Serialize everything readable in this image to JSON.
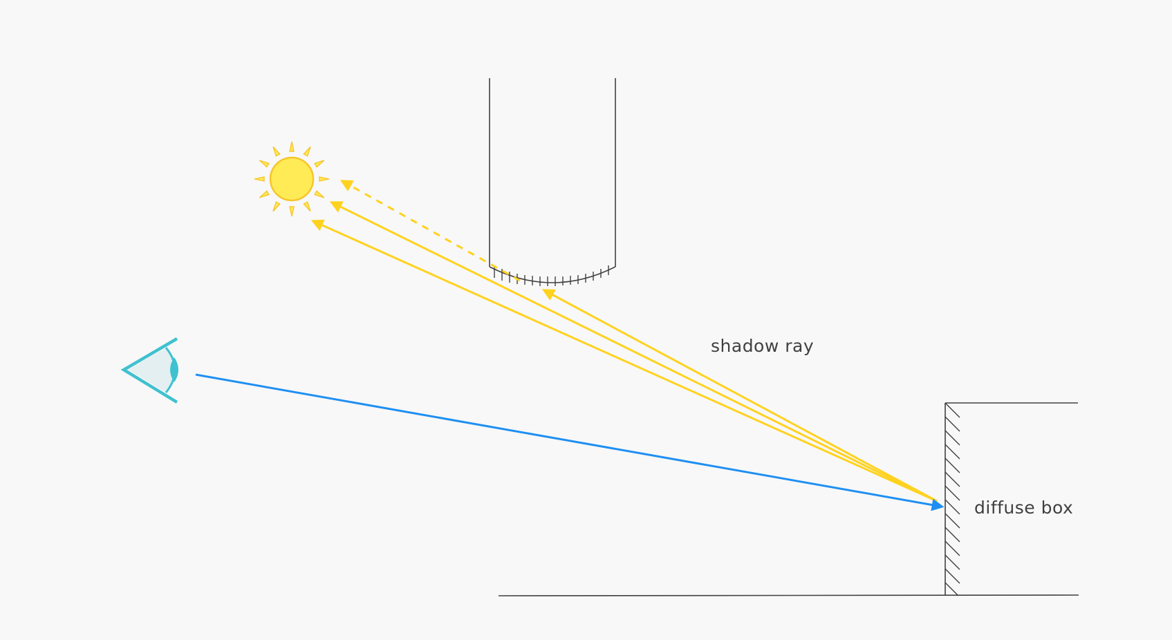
{
  "labels": {
    "shadow_ray": "shadow ray",
    "diffuse_box": "diffuse box"
  },
  "colors": {
    "background": "#f8f8f8",
    "shadow_ray": "#ffd21f",
    "sun_fill": "#ffeb55",
    "sun_rays": "#f7c52b",
    "camera_ray": "#1e8ff2",
    "eye": "#3fc1cf",
    "ink": "#404040"
  },
  "icons": {
    "light_source": "sun-icon",
    "viewer": "eye-icon"
  }
}
